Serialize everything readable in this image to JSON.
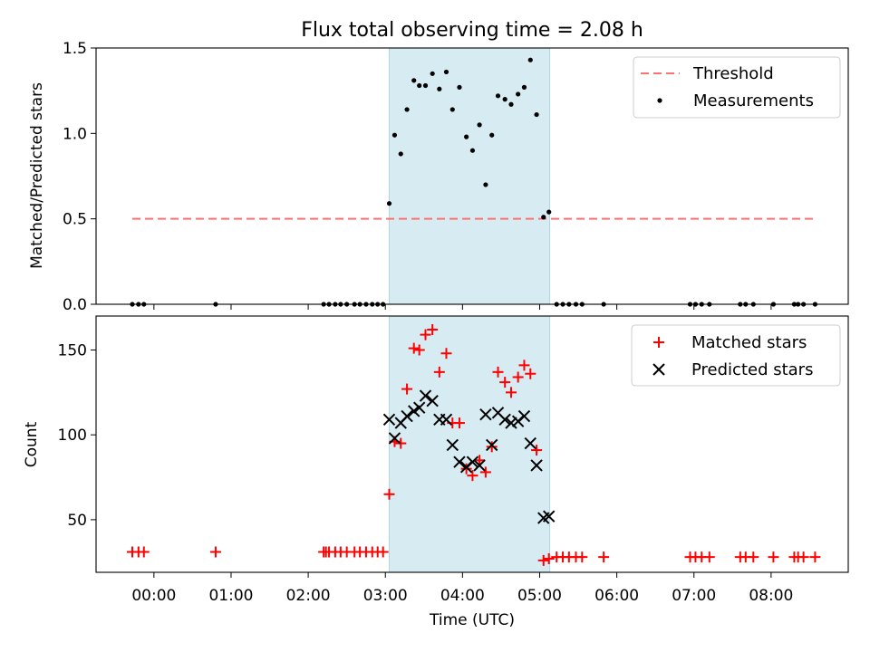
{
  "chart_data": [
    {
      "type": "scatter",
      "title": "Flux total observing time = 2.08 h",
      "xlabel": "",
      "ylabel": "Matched/Predicted stars",
      "xlim": [
        -0.75,
        9.0
      ],
      "ylim": [
        0.0,
        1.5
      ],
      "yticks": [
        0.0,
        0.5,
        1.0,
        1.5
      ],
      "ytick_labels": [
        "0.0",
        "0.5",
        "1.0",
        "1.5"
      ],
      "shaded_span": [
        3.05,
        5.13
      ],
      "threshold": {
        "name": "Threshold",
        "value": 0.5,
        "x_range": [
          -0.28,
          8.58
        ],
        "color": "#ff7070"
      },
      "legend": [
        "Threshold",
        "Measurements"
      ],
      "legend_position": "top-right",
      "measurements": {
        "name": "Measurements",
        "x": [
          -0.28,
          -0.2,
          -0.13,
          0.8,
          2.2,
          2.27,
          2.35,
          2.42,
          2.5,
          2.6,
          2.67,
          2.75,
          2.83,
          2.9,
          2.97,
          3.05,
          3.12,
          3.2,
          3.28,
          3.37,
          3.44,
          3.52,
          3.61,
          3.7,
          3.79,
          3.87,
          3.96,
          4.05,
          4.13,
          4.22,
          4.3,
          4.38,
          4.46,
          4.55,
          4.63,
          4.72,
          4.8,
          4.88,
          4.96,
          5.05,
          5.12,
          5.22,
          5.3,
          5.38,
          5.47,
          5.55,
          5.83,
          6.95,
          7.02,
          7.1,
          7.2,
          7.6,
          7.67,
          7.77,
          8.03,
          8.3,
          8.35,
          8.42,
          8.57
        ],
        "y": [
          0,
          0,
          0,
          0,
          0,
          0,
          0,
          0,
          0,
          0,
          0,
          0,
          0,
          0,
          0,
          0.59,
          0.99,
          0.88,
          1.14,
          1.31,
          1.28,
          1.28,
          1.35,
          1.26,
          1.36,
          1.14,
          1.27,
          0.98,
          0.9,
          1.05,
          0.7,
          0.99,
          1.22,
          1.2,
          1.17,
          1.23,
          1.27,
          1.43,
          1.11,
          0.51,
          0.54,
          0,
          0,
          0,
          0,
          0,
          0,
          0,
          0,
          0,
          0,
          0,
          0,
          0,
          0,
          0,
          0,
          0,
          0
        ]
      }
    },
    {
      "type": "scatter",
      "title": "",
      "xlabel": "Time (UTC)",
      "ylabel": "Count",
      "xlim": [
        -0.75,
        9.0
      ],
      "ylim": [
        19.0,
        170.0
      ],
      "yticks": [
        50,
        100,
        150
      ],
      "ytick_labels": [
        "50",
        "100",
        "150"
      ],
      "xticks": [
        0,
        1,
        2,
        3,
        4,
        5,
        6,
        7,
        8
      ],
      "xtick_labels": [
        "00:00",
        "01:00",
        "02:00",
        "03:00",
        "04:00",
        "05:00",
        "06:00",
        "07:00",
        "08:00"
      ],
      "shaded_span": [
        3.05,
        5.13
      ],
      "legend": [
        "Matched stars",
        "Predicted stars"
      ],
      "legend_position": "top-right",
      "series": [
        {
          "name": "Matched stars",
          "marker": "+",
          "color": "#ff0000",
          "x": [
            -0.28,
            -0.2,
            -0.13,
            0.8,
            2.2,
            2.23,
            2.27,
            2.35,
            2.42,
            2.5,
            2.6,
            2.67,
            2.75,
            2.83,
            2.9,
            2.97,
            3.05,
            3.12,
            3.2,
            3.28,
            3.37,
            3.44,
            3.52,
            3.61,
            3.7,
            3.79,
            3.87,
            3.96,
            4.05,
            4.13,
            4.22,
            4.3,
            4.38,
            4.46,
            4.55,
            4.63,
            4.72,
            4.8,
            4.88,
            4.96,
            5.05,
            5.12,
            5.22,
            5.3,
            5.38,
            5.47,
            5.55,
            5.83,
            6.95,
            7.02,
            7.1,
            7.2,
            7.6,
            7.67,
            7.77,
            8.03,
            8.3,
            8.35,
            8.42,
            8.57
          ],
          "y": [
            31,
            31,
            31,
            31,
            31,
            31,
            31,
            31,
            31,
            31,
            31,
            31,
            31,
            31,
            31,
            31,
            65,
            96,
            95,
            127,
            151,
            150,
            159,
            162,
            137,
            148,
            107,
            107,
            80,
            76,
            85,
            78,
            93,
            137,
            131,
            125,
            134,
            141,
            136,
            91,
            26,
            27,
            28,
            28,
            28,
            28,
            28,
            28,
            28,
            28,
            28,
            28,
            28,
            28,
            28,
            28,
            28,
            28,
            28,
            28
          ]
        },
        {
          "name": "Predicted stars",
          "marker": "x",
          "color": "#000000",
          "x": [
            3.05,
            3.12,
            3.2,
            3.28,
            3.37,
            3.44,
            3.52,
            3.61,
            3.7,
            3.79,
            3.87,
            3.96,
            4.05,
            4.13,
            4.22,
            4.3,
            4.38,
            4.46,
            4.55,
            4.63,
            4.72,
            4.8,
            4.88,
            4.96,
            5.05,
            5.12
          ],
          "y": [
            109,
            98,
            107,
            111,
            114,
            116,
            123,
            120,
            109,
            109,
            94,
            84,
            81,
            84,
            82,
            112,
            94,
            113,
            109,
            107,
            108,
            111,
            95,
            82,
            51,
            52
          ]
        }
      ]
    }
  ]
}
